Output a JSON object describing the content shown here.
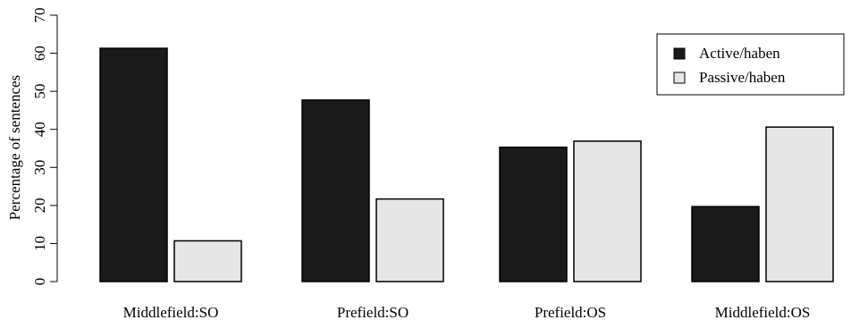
{
  "chart_data": {
    "type": "bar",
    "title": "",
    "xlabel": "",
    "ylabel": "Percentage of sentences",
    "ylim": [
      0,
      70
    ],
    "yticks": [
      0,
      10,
      20,
      30,
      40,
      50,
      60,
      70
    ],
    "categories": [
      "Middlefield:SO",
      "Prefield:SO",
      "Prefield:OS",
      "Middlefield:OS"
    ],
    "series": [
      {
        "name": "Active/haben",
        "color": "#1a1a1a",
        "values": [
          61.3,
          47.7,
          35.3,
          19.7
        ]
      },
      {
        "name": "Passive/haben",
        "color": "#e6e6e6",
        "values": [
          10.7,
          21.7,
          36.9,
          40.6
        ]
      }
    ],
    "grid": false,
    "legend_position": "top-right"
  }
}
